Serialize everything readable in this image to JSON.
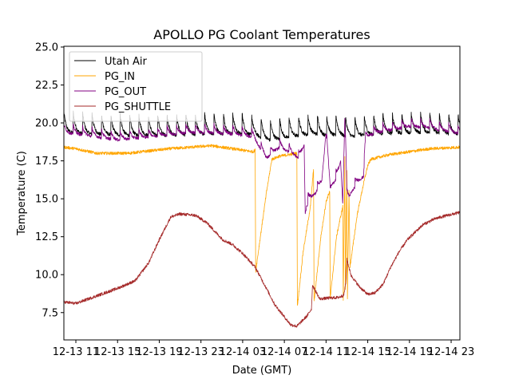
{
  "chart_data": {
    "type": "line",
    "title": "APOLLO PG Coolant Temperatures",
    "xlabel": "Date (GMT)",
    "ylabel": "Temperature (C)",
    "x_units": "hours since 12-13 00:00 GMT",
    "xlim": [
      9.85,
      47.84
    ],
    "ylim": [
      5.7,
      25.05
    ],
    "x_ticks": [
      {
        "value": 11,
        "label": "12-13 11"
      },
      {
        "value": 15,
        "label": "12-13 15"
      },
      {
        "value": 19,
        "label": "12-13 19"
      },
      {
        "value": 23,
        "label": "12-13 23"
      },
      {
        "value": 27,
        "label": "12-14 03"
      },
      {
        "value": 31,
        "label": "12-14 07"
      },
      {
        "value": 35,
        "label": "12-14 11"
      },
      {
        "value": 39,
        "label": "12-14 15"
      },
      {
        "value": 43,
        "label": "12-14 19"
      },
      {
        "value": 47,
        "label": "12-14 23"
      }
    ],
    "y_ticks": [
      {
        "value": 7.5,
        "label": "7.5"
      },
      {
        "value": 10.0,
        "label": "10.0"
      },
      {
        "value": 12.5,
        "label": "12.5"
      },
      {
        "value": 15.0,
        "label": "15.0"
      },
      {
        "value": 17.5,
        "label": "17.5"
      },
      {
        "value": 20.0,
        "label": "20.0"
      },
      {
        "value": 22.5,
        "label": "22.5"
      },
      {
        "value": 25.0,
        "label": "25.0"
      }
    ],
    "grid": false,
    "legend": {
      "placement": "top-left"
    },
    "series": [
      {
        "name": "Utah Air",
        "color": "#000000",
        "sawtooth": {
          "period_hours": 0.9,
          "spike": 1.4,
          "noise": 0.12
        },
        "points": [
          [
            9.85,
            19.7
          ],
          [
            12,
            19.6
          ],
          [
            16,
            19.5
          ],
          [
            20,
            19.5
          ],
          [
            24,
            19.6
          ],
          [
            27,
            19.6
          ],
          [
            28.2,
            19.5
          ],
          [
            29.5,
            19.2
          ],
          [
            31,
            19.3
          ],
          [
            32.5,
            19.5
          ],
          [
            34,
            19.6
          ],
          [
            35,
            19.5
          ],
          [
            36.5,
            19.5
          ],
          [
            37.5,
            19.4
          ],
          [
            38.5,
            19.5
          ],
          [
            40,
            19.6
          ],
          [
            44,
            19.7
          ],
          [
            47.84,
            19.6
          ]
        ]
      },
      {
        "name": "PG_IN",
        "color": "#ffa500",
        "noise": 0.1,
        "points": [
          [
            9.85,
            18.4
          ],
          [
            11,
            18.3
          ],
          [
            13,
            18.0
          ],
          [
            16,
            18.0
          ],
          [
            20,
            18.3
          ],
          [
            24,
            18.5
          ],
          [
            26,
            18.3
          ],
          [
            28.0,
            18.1
          ],
          [
            28.2,
            18.2
          ],
          [
            28.25,
            10.2
          ],
          [
            28.6,
            12.0
          ],
          [
            29.3,
            15.5
          ],
          [
            29.8,
            17.6
          ],
          [
            30.5,
            17.8
          ],
          [
            32.2,
            18.0
          ],
          [
            32.25,
            7.9
          ],
          [
            32.8,
            11.5
          ],
          [
            33.5,
            14.5
          ],
          [
            33.8,
            17.0
          ],
          [
            33.85,
            8.2
          ],
          [
            34.5,
            12.5
          ],
          [
            35.0,
            14.8
          ],
          [
            35.35,
            15.5
          ],
          [
            35.4,
            8.4
          ],
          [
            36.0,
            12.5
          ],
          [
            36.6,
            14.5
          ],
          [
            36.65,
            8.3
          ],
          [
            36.8,
            17.8
          ],
          [
            36.85,
            9.0
          ],
          [
            37.0,
            16.8
          ],
          [
            37.05,
            8.5
          ],
          [
            37.2,
            15.5
          ],
          [
            37.3,
            10.5
          ],
          [
            37.6,
            12.0
          ],
          [
            38.0,
            14.0
          ],
          [
            38.6,
            16.0
          ],
          [
            39.0,
            17.2
          ],
          [
            39.3,
            17.6
          ],
          [
            41,
            17.9
          ],
          [
            43,
            18.1
          ],
          [
            45,
            18.3
          ],
          [
            47.84,
            18.4
          ]
        ]
      },
      {
        "name": "PG_OUT",
        "color": "#800080",
        "sawtooth": {
          "period_hours": 0.9,
          "spike": 0.6,
          "noise": 0.1
        },
        "points": [
          [
            9.85,
            19.5
          ],
          [
            12,
            19.3
          ],
          [
            15,
            19.0
          ],
          [
            18,
            19.2
          ],
          [
            22,
            19.5
          ],
          [
            26,
            19.4
          ],
          [
            28.0,
            19.2
          ],
          [
            29.3,
            17.8
          ],
          [
            30.5,
            18.5
          ],
          [
            31.5,
            18.2
          ],
          [
            32.4,
            17.8
          ],
          [
            32.9,
            18.6
          ],
          [
            33.0,
            14.2
          ],
          [
            33.3,
            15.0
          ],
          [
            34.0,
            15.5
          ],
          [
            34.6,
            16.3
          ],
          [
            35.0,
            19.5
          ],
          [
            35.4,
            15.8
          ],
          [
            36.0,
            16.5
          ],
          [
            36.4,
            17.5
          ],
          [
            36.6,
            14.8
          ],
          [
            36.8,
            20.5
          ],
          [
            37.0,
            15.5
          ],
          [
            37.2,
            15.2
          ],
          [
            37.5,
            15.6
          ],
          [
            38.0,
            16.2
          ],
          [
            38.6,
            16.6
          ],
          [
            38.8,
            19.2
          ],
          [
            40,
            19.5
          ],
          [
            43,
            19.9
          ],
          [
            45,
            19.8
          ],
          [
            47.84,
            19.4
          ]
        ]
      },
      {
        "name": "PG_SHUTTLE",
        "color": "#a52a2a",
        "noise": 0.1,
        "points": [
          [
            9.85,
            8.2
          ],
          [
            11,
            8.1
          ],
          [
            13,
            8.6
          ],
          [
            15,
            9.1
          ],
          [
            16.7,
            9.6
          ],
          [
            18,
            10.8
          ],
          [
            19,
            12.3
          ],
          [
            20.1,
            13.8
          ],
          [
            21,
            14.0
          ],
          [
            22.5,
            13.9
          ],
          [
            23.6,
            13.4
          ],
          [
            24.4,
            12.8
          ],
          [
            25.1,
            12.3
          ],
          [
            26,
            12.0
          ],
          [
            27,
            11.4
          ],
          [
            28.2,
            10.5
          ],
          [
            29.2,
            9.2
          ],
          [
            30.1,
            8.0
          ],
          [
            31.6,
            6.7
          ],
          [
            32.2,
            6.6
          ],
          [
            33.2,
            7.3
          ],
          [
            33.6,
            7.75
          ],
          [
            33.7,
            9.3
          ],
          [
            34.4,
            8.4
          ],
          [
            35.1,
            8.45
          ],
          [
            36.2,
            8.5
          ],
          [
            36.7,
            8.65
          ],
          [
            36.9,
            9.5
          ],
          [
            37.0,
            11.0
          ],
          [
            37.4,
            9.95
          ],
          [
            38.2,
            9.2
          ],
          [
            39.0,
            8.7
          ],
          [
            39.7,
            8.8
          ],
          [
            40.5,
            9.4
          ],
          [
            41.2,
            10.5
          ],
          [
            42.0,
            11.5
          ],
          [
            42.8,
            12.3
          ],
          [
            44.3,
            13.3
          ],
          [
            45.5,
            13.7
          ],
          [
            46.6,
            13.9
          ],
          [
            47.84,
            14.1
          ]
        ]
      }
    ]
  }
}
